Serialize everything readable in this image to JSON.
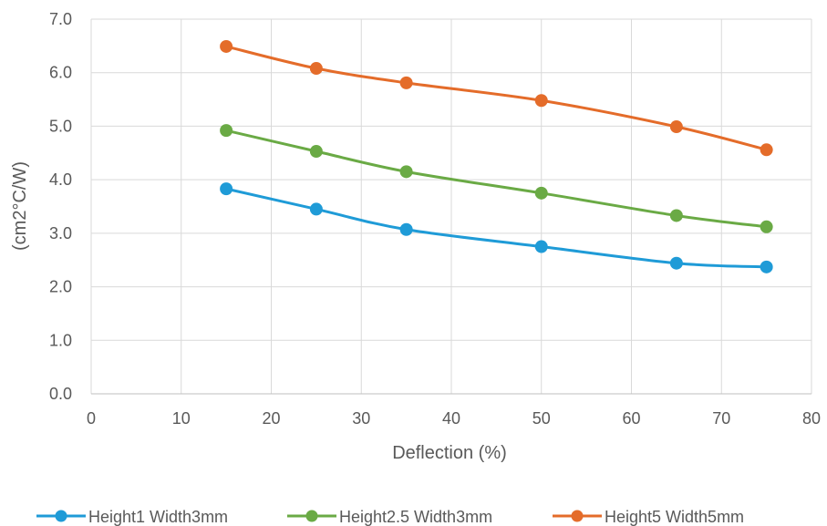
{
  "chart_data": {
    "type": "line",
    "title": "",
    "xlabel": "Deflection (%)",
    "ylabel": "(cm2°C/W)",
    "xlim": [
      0,
      80
    ],
    "ylim": [
      0,
      7
    ],
    "xticks": [
      0,
      10,
      20,
      30,
      40,
      50,
      60,
      70,
      80
    ],
    "yticks": [
      "0.0",
      "1.0",
      "2.0",
      "3.0",
      "4.0",
      "5.0",
      "6.0",
      "7.0"
    ],
    "grid": true,
    "smooth": true,
    "legend_position": "bottom",
    "x": [
      15,
      25,
      35,
      50,
      65,
      75
    ],
    "series": [
      {
        "name": "Height1 Width3mm",
        "color": "#1f9bd7",
        "values": [
          3.83,
          3.45,
          3.07,
          2.75,
          2.44,
          2.37
        ]
      },
      {
        "name": "Height2.5 Width3mm",
        "color": "#6aaa45",
        "values": [
          4.92,
          4.53,
          4.15,
          3.75,
          3.33,
          3.12
        ]
      },
      {
        "name": "Height5 Width5mm",
        "color": "#e46c2a",
        "values": [
          6.49,
          6.08,
          5.81,
          5.48,
          4.99,
          4.56
        ]
      }
    ]
  }
}
